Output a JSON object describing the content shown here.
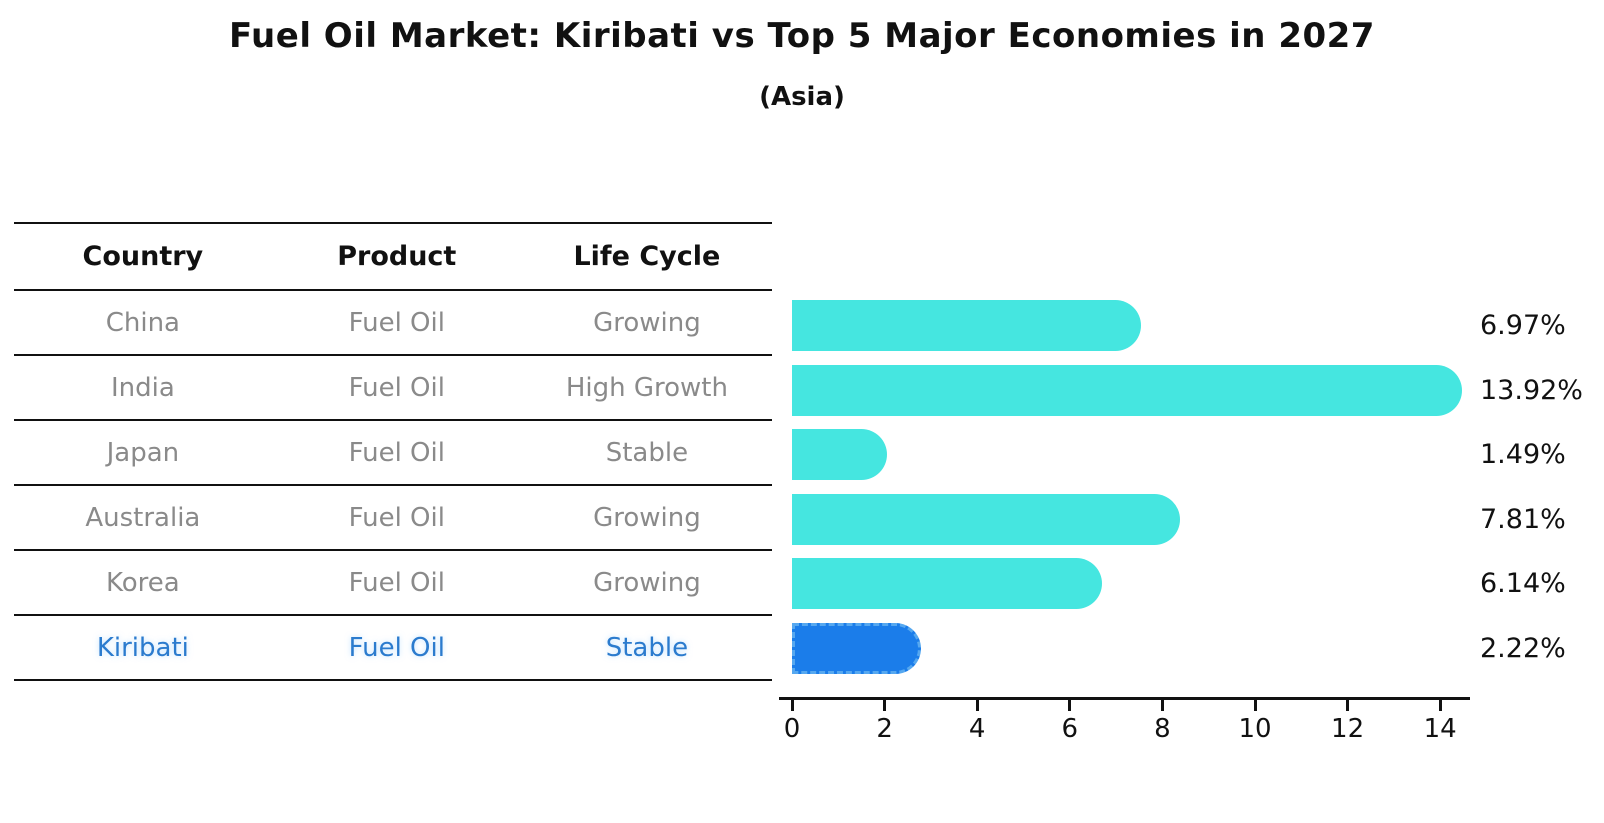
{
  "title": "Fuel Oil Market: Kiribati vs Top 5 Major Economies in 2027",
  "subtitle": "(Asia)",
  "table": {
    "headers": [
      "Country",
      "Product",
      "Life Cycle"
    ],
    "rows": [
      {
        "country": "China",
        "product": "Fuel Oil",
        "life_cycle": "Growing",
        "highlight": false
      },
      {
        "country": "India",
        "product": "Fuel Oil",
        "life_cycle": "High Growth",
        "highlight": false
      },
      {
        "country": "Japan",
        "product": "Fuel Oil",
        "life_cycle": "Stable",
        "highlight": false
      },
      {
        "country": "Australia",
        "product": "Fuel Oil",
        "life_cycle": "Growing",
        "highlight": false
      },
      {
        "country": "Korea",
        "product": "Fuel Oil",
        "life_cycle": "Growing",
        "highlight": false
      },
      {
        "country": "Kiribati",
        "product": "Fuel Oil",
        "life_cycle": "Stable",
        "highlight": true
      }
    ]
  },
  "chart_data": {
    "type": "bar",
    "orientation": "horizontal",
    "title": "Fuel Oil Market: Kiribati vs Top 5 Major Economies in 2027",
    "subtitle": "(Asia)",
    "categories": [
      "China",
      "India",
      "Japan",
      "Australia",
      "Korea",
      "Kiribati"
    ],
    "values": [
      6.97,
      13.92,
      1.49,
      7.81,
      6.14,
      2.22
    ],
    "value_labels": [
      "6.97%",
      "13.92%",
      "1.49%",
      "7.81%",
      "6.14%",
      "2.22%"
    ],
    "unit": "%",
    "xlabel": "",
    "ylabel": "",
    "xlim": [
      0,
      14.65
    ],
    "x_ticks": [
      0,
      2,
      4,
      6,
      8,
      10,
      12,
      14
    ],
    "grid": false,
    "legend": "none",
    "highlight_index": 5
  },
  "colors": {
    "bar": "#45e6e0",
    "highlight_bar": "#1b7dea",
    "highlight_dash": "#56a8f0",
    "highlight_text": "#2b7bce",
    "row_text": "#8a8a8a",
    "ink": "#111111"
  }
}
